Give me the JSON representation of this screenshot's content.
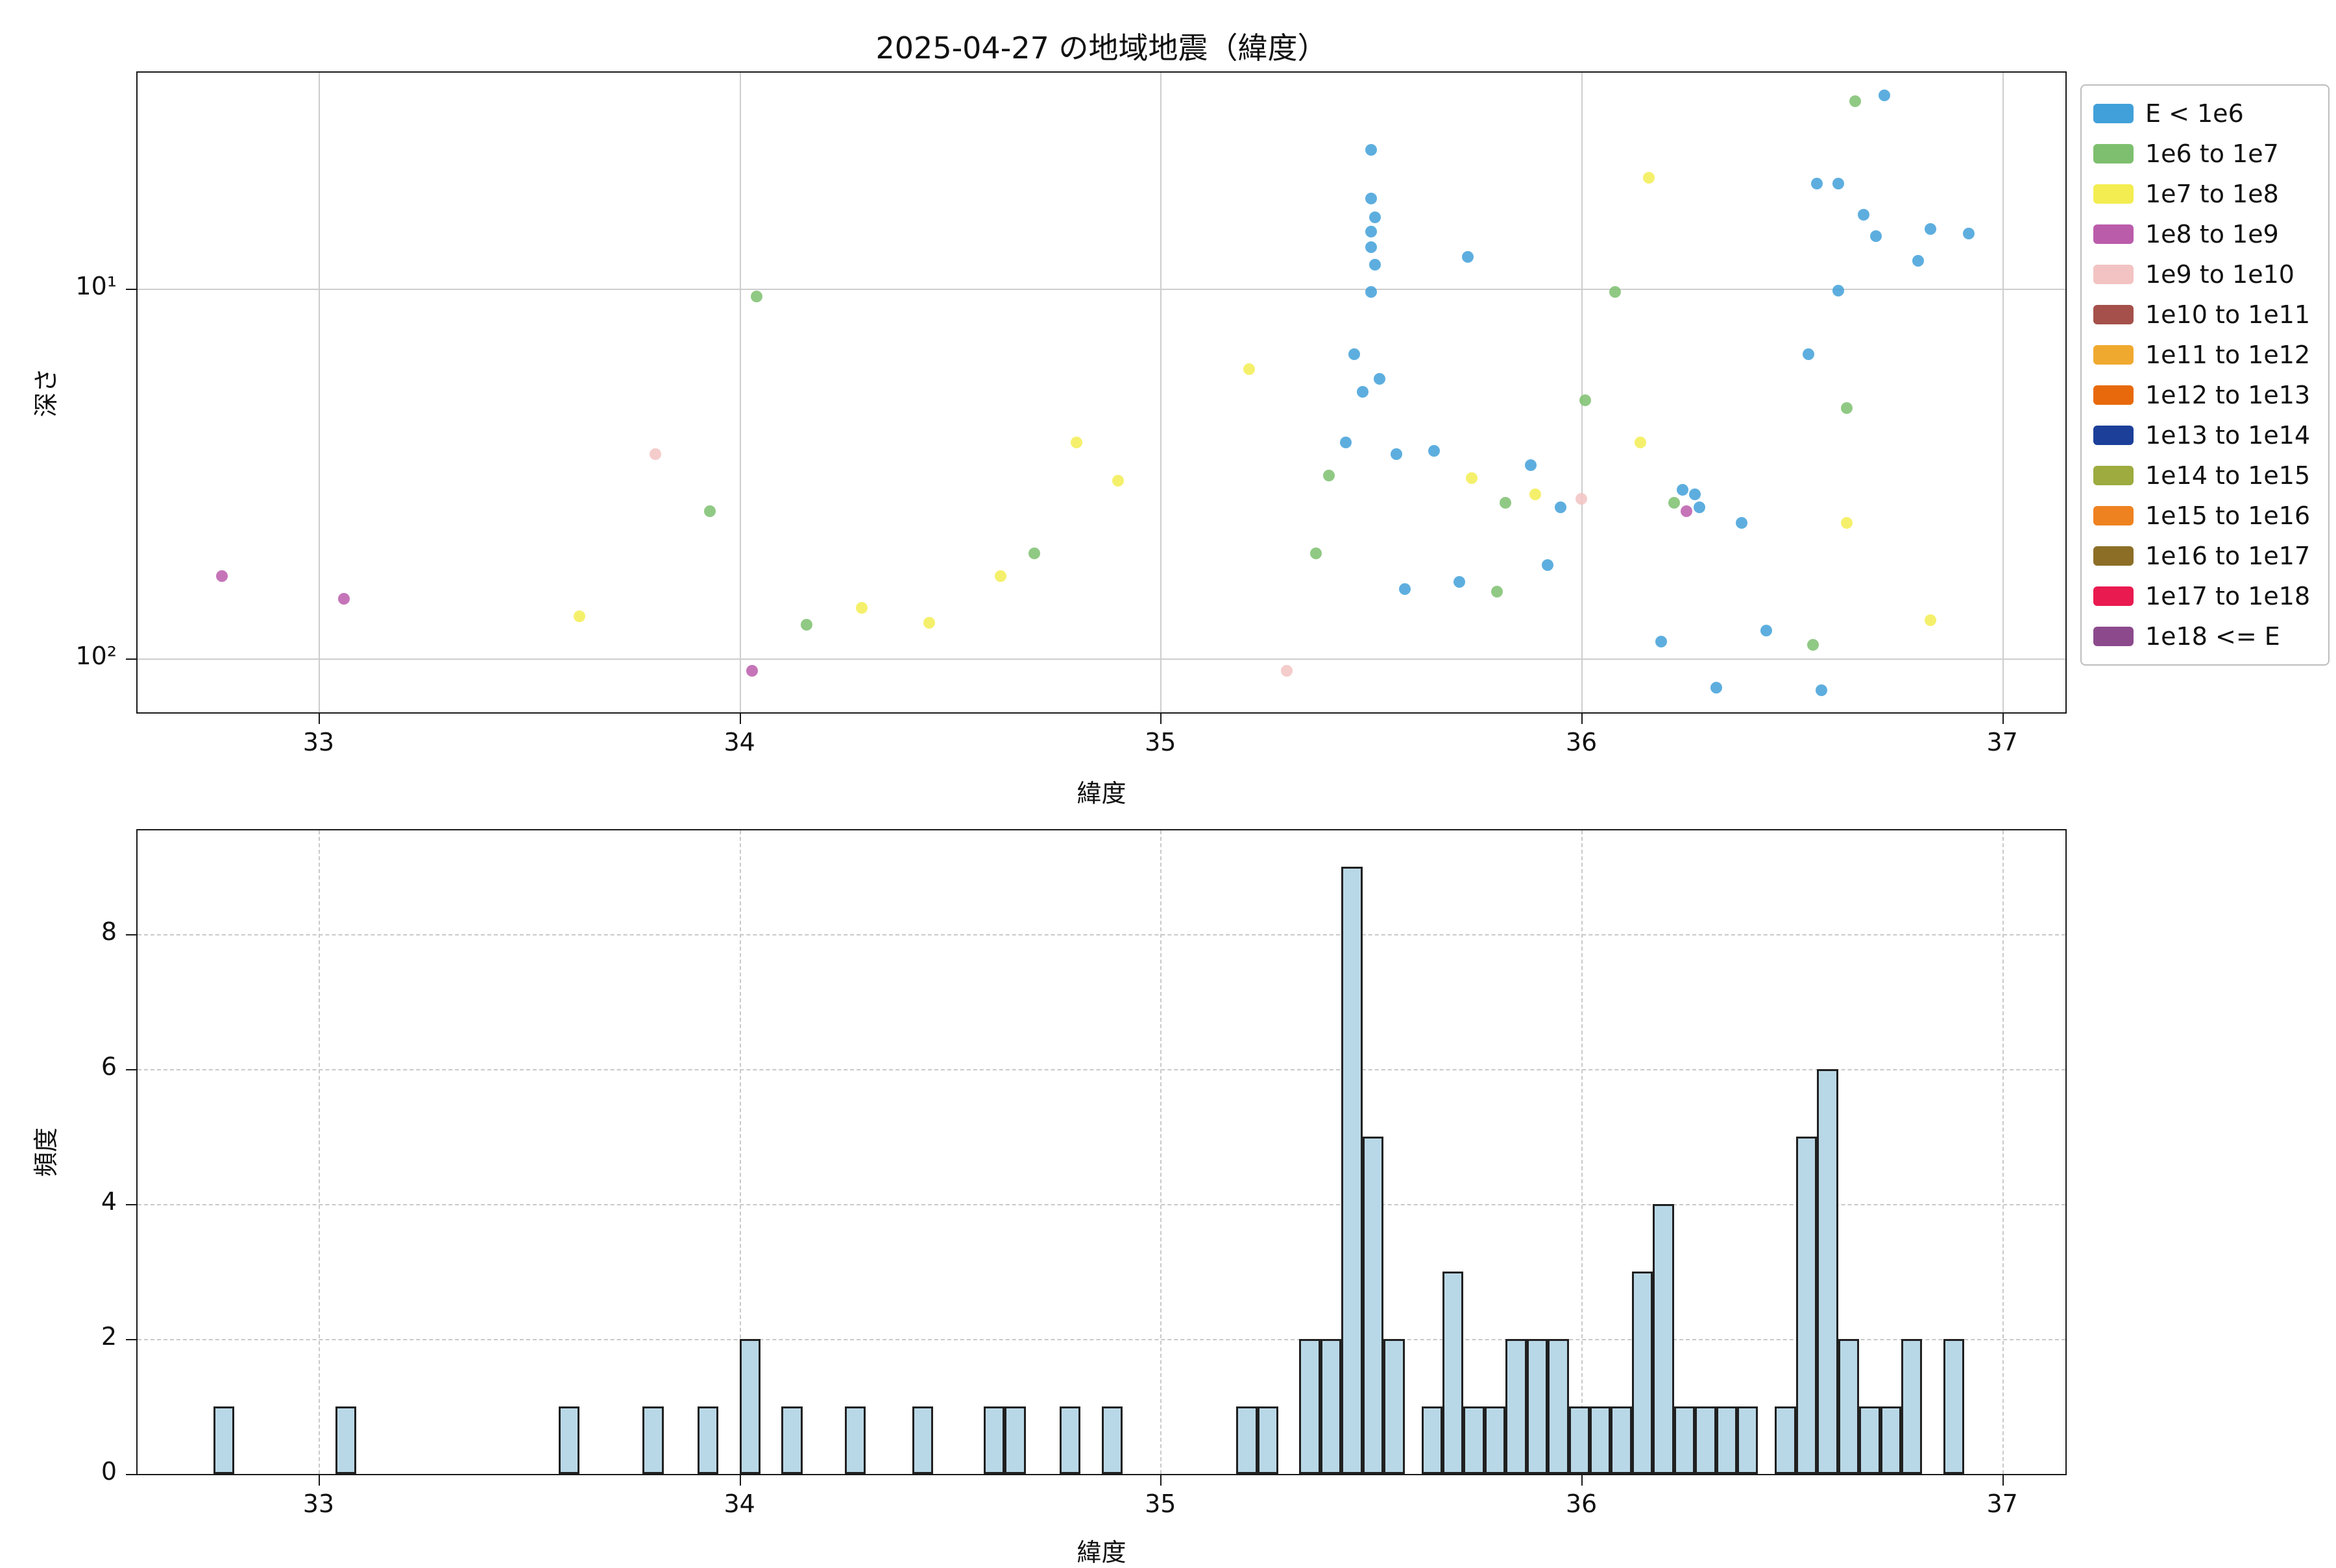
{
  "figure": {
    "title": "2025-04-27 の地域地震（緯度）"
  },
  "chart_data": [
    {
      "type": "scatter",
      "title": "2025-04-27 の地域地震（緯度）",
      "xlabel": "緯度",
      "ylabel": "深さ",
      "xlim": [
        32.57,
        37.15
      ],
      "yscale": "log",
      "y_inverted": true,
      "ylim": [
        2.6,
        140
      ],
      "x_ticks": [
        33,
        34,
        35,
        36,
        37
      ],
      "y_ticks": [
        10,
        100
      ],
      "y_tick_labels": [
        "10¹",
        "10²"
      ],
      "grid": "solid",
      "legend": {
        "position": "upper right",
        "entries": [
          {
            "label": "E < 1e6",
            "color": "#41a0d9"
          },
          {
            "label": "1e6 to 1e7",
            "color": "#7dbf6e"
          },
          {
            "label": "1e7 to 1e8",
            "color": "#f3ed51"
          },
          {
            "label": "1e8 to 1e9",
            "color": "#bb5cab"
          },
          {
            "label": "1e9 to 1e10",
            "color": "#f2c3c2"
          },
          {
            "label": "1e10 to 1e11",
            "color": "#a5504a"
          },
          {
            "label": "1e11 to 1e12",
            "color": "#efa92f"
          },
          {
            "label": "1e12 to 1e13",
            "color": "#e8690b"
          },
          {
            "label": "1e13 to 1e14",
            "color": "#1c3f99"
          },
          {
            "label": "1e14 to 1e15",
            "color": "#9dab3f"
          },
          {
            "label": "1e15 to 1e16",
            "color": "#ef8220"
          },
          {
            "label": "1e16 to 1e17",
            "color": "#8c6e26"
          },
          {
            "label": "1e17 to 1e18",
            "color": "#e91a4f"
          },
          {
            "label": "1e18 <= E",
            "color": "#8c4a8c"
          }
        ]
      },
      "point_format": [
        "latitude",
        "depth",
        "category_index"
      ],
      "points": [
        [
          32.77,
          60,
          3
        ],
        [
          33.06,
          69,
          3
        ],
        [
          33.62,
          77,
          2
        ],
        [
          33.8,
          28,
          4
        ],
        [
          33.93,
          40,
          1
        ],
        [
          34.04,
          10.5,
          1
        ],
        [
          34.03,
          108,
          3
        ],
        [
          34.16,
          81,
          1
        ],
        [
          34.29,
          73,
          2
        ],
        [
          34.45,
          80,
          2
        ],
        [
          34.62,
          60,
          2
        ],
        [
          34.7,
          52,
          1
        ],
        [
          34.8,
          26,
          2
        ],
        [
          34.9,
          33,
          2
        ],
        [
          35.21,
          16.5,
          2
        ],
        [
          35.3,
          108,
          4
        ],
        [
          35.37,
          52,
          1
        ],
        [
          35.4,
          32,
          1
        ],
        [
          35.5,
          4.2,
          0
        ],
        [
          35.5,
          5.7,
          0
        ],
        [
          35.51,
          6.4,
          0
        ],
        [
          35.5,
          7.0,
          0
        ],
        [
          35.5,
          7.7,
          0
        ],
        [
          35.51,
          8.6,
          0
        ],
        [
          35.5,
          10.2,
          0
        ],
        [
          35.46,
          15,
          0
        ],
        [
          35.48,
          19,
          0
        ],
        [
          35.44,
          26,
          0
        ],
        [
          35.52,
          17.5,
          0
        ],
        [
          35.56,
          28,
          0
        ],
        [
          35.58,
          65,
          0
        ],
        [
          35.71,
          62,
          0
        ],
        [
          35.65,
          27.5,
          0
        ],
        [
          35.73,
          8.2,
          0
        ],
        [
          35.74,
          32.5,
          2
        ],
        [
          35.8,
          66,
          1
        ],
        [
          35.82,
          38,
          1
        ],
        [
          35.89,
          36,
          2
        ],
        [
          35.88,
          30,
          0
        ],
        [
          35.92,
          56,
          0
        ],
        [
          35.95,
          39,
          0
        ],
        [
          36.0,
          37,
          4
        ],
        [
          36.01,
          20,
          1
        ],
        [
          36.08,
          10.2,
          1
        ],
        [
          36.16,
          5.0,
          2
        ],
        [
          36.14,
          26,
          2
        ],
        [
          36.19,
          90,
          0
        ],
        [
          36.22,
          38,
          1
        ],
        [
          36.25,
          40,
          3
        ],
        [
          36.24,
          35,
          0
        ],
        [
          36.27,
          36,
          0
        ],
        [
          36.28,
          39,
          0
        ],
        [
          36.32,
          120,
          0
        ],
        [
          36.38,
          43,
          0
        ],
        [
          36.44,
          84,
          0
        ],
        [
          36.54,
          15,
          0
        ],
        [
          36.55,
          92,
          1
        ],
        [
          36.57,
          122,
          0
        ],
        [
          36.56,
          5.2,
          0
        ],
        [
          36.61,
          5.2,
          0
        ],
        [
          36.61,
          10.1,
          0
        ],
        [
          36.63,
          21,
          1
        ],
        [
          36.63,
          43,
          2
        ],
        [
          36.65,
          3.1,
          1
        ],
        [
          36.72,
          3.0,
          0
        ],
        [
          36.67,
          6.3,
          0
        ],
        [
          36.7,
          7.2,
          0
        ],
        [
          36.8,
          8.4,
          0
        ],
        [
          36.83,
          6.9,
          0
        ],
        [
          36.83,
          79,
          2
        ],
        [
          36.92,
          7.1,
          0
        ]
      ]
    },
    {
      "type": "bar",
      "subtype": "histogram",
      "xlabel": "緯度",
      "ylabel": "頻度",
      "xlim": [
        32.57,
        37.15
      ],
      "ylim": [
        0,
        9.54
      ],
      "x_ticks": [
        33,
        34,
        35,
        36,
        37
      ],
      "y_ticks": [
        0,
        2,
        4,
        6,
        8
      ],
      "grid": "dashed",
      "bar_color": "#b9d8e7",
      "bar_edge_color": "#202020",
      "bin_width": 0.05,
      "bar_format": [
        "bin_left_edge_latitude",
        "count"
      ],
      "bars": [
        [
          32.75,
          1
        ],
        [
          33.04,
          1
        ],
        [
          33.57,
          1
        ],
        [
          33.77,
          1
        ],
        [
          33.9,
          1
        ],
        [
          34.0,
          2
        ],
        [
          34.1,
          1
        ],
        [
          34.25,
          1
        ],
        [
          34.41,
          1
        ],
        [
          34.58,
          1
        ],
        [
          34.63,
          1
        ],
        [
          34.76,
          1
        ],
        [
          34.86,
          1
        ],
        [
          35.18,
          1
        ],
        [
          35.23,
          1
        ],
        [
          35.33,
          2
        ],
        [
          35.38,
          2
        ],
        [
          35.43,
          9
        ],
        [
          35.48,
          5
        ],
        [
          35.53,
          2
        ],
        [
          35.62,
          1
        ],
        [
          35.67,
          3
        ],
        [
          35.72,
          1
        ],
        [
          35.77,
          1
        ],
        [
          35.82,
          2
        ],
        [
          35.87,
          2
        ],
        [
          35.92,
          2
        ],
        [
          35.97,
          1
        ],
        [
          36.02,
          1
        ],
        [
          36.07,
          1
        ],
        [
          36.12,
          3
        ],
        [
          36.17,
          4
        ],
        [
          36.22,
          1
        ],
        [
          36.27,
          1
        ],
        [
          36.32,
          1
        ],
        [
          36.37,
          1
        ],
        [
          36.46,
          1
        ],
        [
          36.51,
          5
        ],
        [
          36.56,
          6
        ],
        [
          36.61,
          2
        ],
        [
          36.66,
          1
        ],
        [
          36.71,
          1
        ],
        [
          36.76,
          2
        ],
        [
          36.86,
          2
        ]
      ]
    }
  ]
}
